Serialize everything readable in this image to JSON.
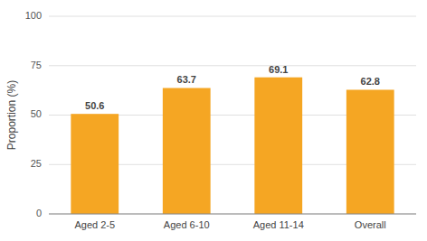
{
  "chart_data": {
    "type": "bar",
    "categories": [
      "Aged 2-5",
      "Aged 6-10",
      "Aged 11-14",
      "Overall"
    ],
    "values": [
      50.6,
      63.7,
      69.1,
      62.8
    ],
    "color": "#F5A623",
    "ylabel": "Proportion (%)",
    "ylim": [
      0,
      100
    ],
    "yticks": [
      0,
      25,
      50,
      75,
      100
    ],
    "grid": true,
    "data_labels": true
  }
}
